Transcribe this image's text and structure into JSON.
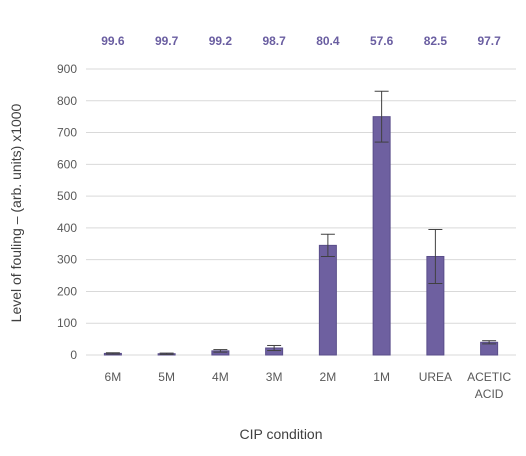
{
  "chart_data": {
    "type": "bar",
    "categories": [
      "6M",
      "5M",
      "4M",
      "3M",
      "2M",
      "1M",
      "UREA",
      "ACETIC ACID"
    ],
    "values": [
      5,
      4,
      13,
      22,
      345,
      750,
      310,
      40
    ],
    "error": [
      2,
      2,
      4,
      8,
      35,
      80,
      85,
      5
    ],
    "top_labels": [
      "99.6",
      "99.7",
      "99.2",
      "98.7",
      "80.4",
      "57.6",
      "82.5",
      "97.7"
    ],
    "xlabel": "CIP condition",
    "ylabel": "Level of fouling – (arb. units) x1000",
    "ylim": [
      0,
      900
    ],
    "yticks": [
      0,
      100,
      200,
      300,
      400,
      500,
      600,
      700,
      800,
      900
    ],
    "grid": true,
    "colors": {
      "bar": "#6e60a0",
      "top_label": "#6a5ea1"
    }
  }
}
